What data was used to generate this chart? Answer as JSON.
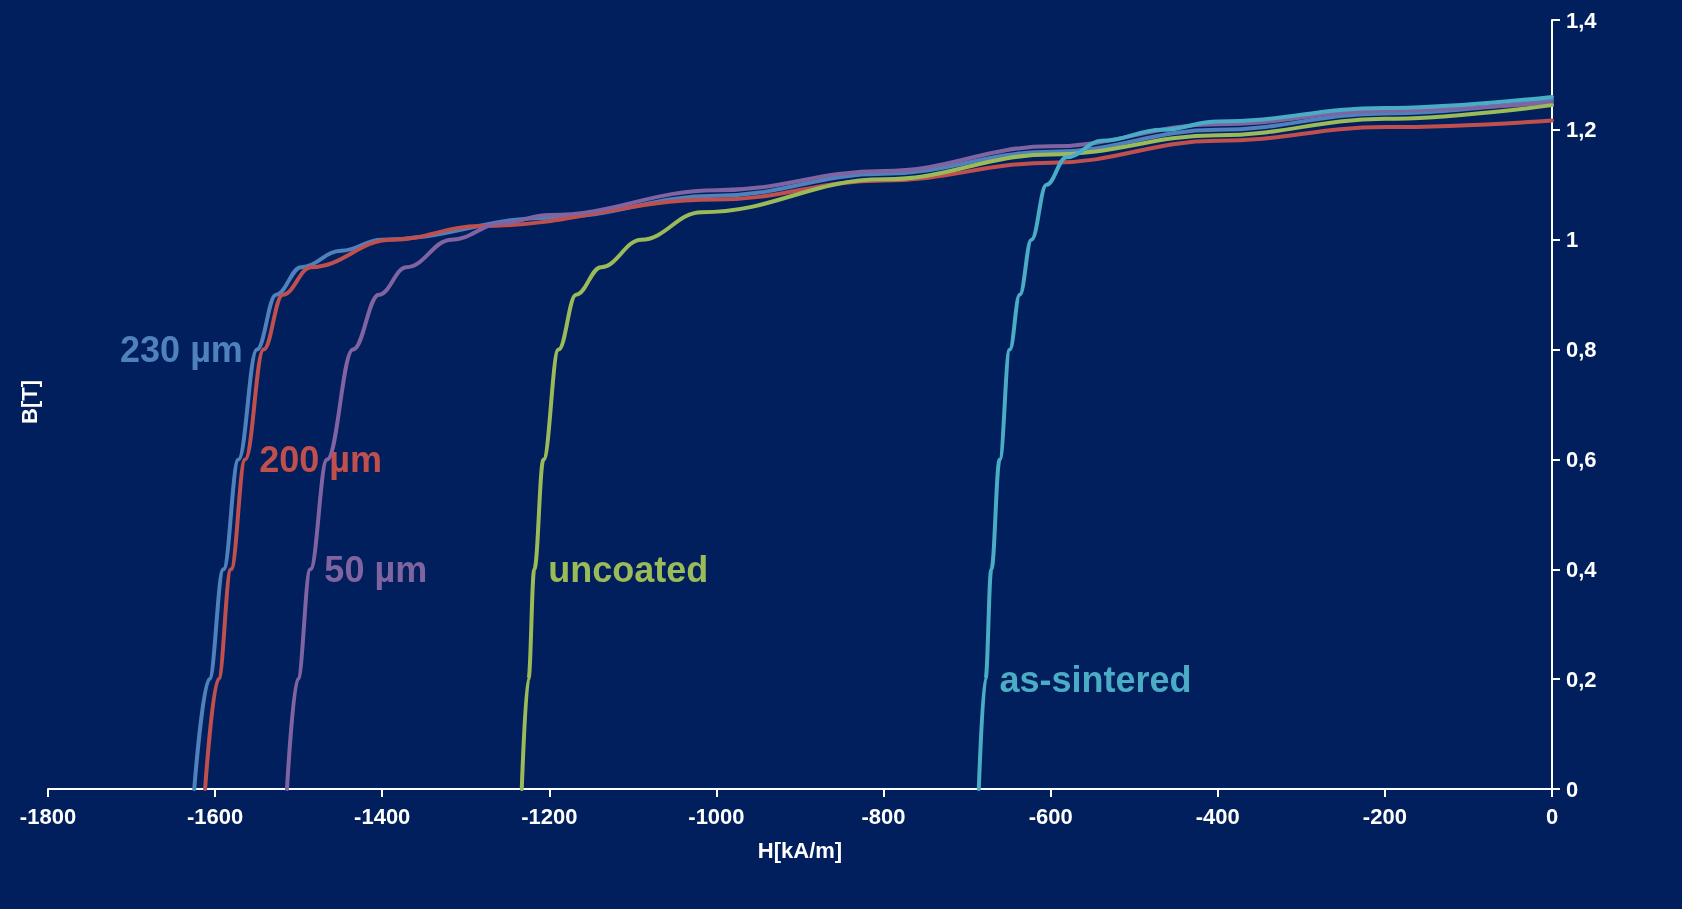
{
  "chart_data": {
    "type": "line",
    "xlabel": "H[kA/m]",
    "ylabel": "B[T]",
    "xlim": [
      -1800,
      0
    ],
    "xticks": [
      -1800,
      -1600,
      -1400,
      -1200,
      -1000,
      -800,
      -600,
      -400,
      -200,
      0
    ],
    "ylim": [
      0,
      1.4
    ],
    "yticks": [
      {
        "value": 0,
        "label": "0"
      },
      {
        "value": 0.2,
        "label": "0,2"
      },
      {
        "value": 0.4,
        "label": "0,4"
      },
      {
        "value": 0.6,
        "label": "0,6"
      },
      {
        "value": 0.8,
        "label": "0,8"
      },
      {
        "value": 1,
        "label": "1"
      },
      {
        "value": 1.2,
        "label": "1,2"
      },
      {
        "value": 1.4,
        "label": "1,4"
      }
    ],
    "grid": false,
    "legend": false,
    "marker": "none",
    "line_style": "solid",
    "series": [
      {
        "name": "230 µm",
        "color": "#4f81bd",
        "x": [
          -1625,
          -1607,
          -1590,
          -1572,
          -1550,
          -1527,
          -1497,
          -1449,
          -1401,
          -1200,
          -1000,
          -800,
          -600,
          -400,
          -200,
          0
        ],
        "values": [
          0,
          0.2,
          0.4,
          0.6,
          0.8,
          0.9,
          0.95,
          0.98,
          1.0,
          1.04,
          1.08,
          1.12,
          1.16,
          1.2,
          1.23,
          1.255
        ]
      },
      {
        "name": "200 µm",
        "color": "#c0504d",
        "x": [
          -1612,
          -1596,
          -1581,
          -1564,
          -1542,
          -1519,
          -1485,
          -1389,
          -1282,
          -1000,
          -800,
          -600,
          -400,
          -200,
          0
        ],
        "values": [
          0,
          0.2,
          0.4,
          0.6,
          0.8,
          0.9,
          0.95,
          1.0,
          1.025,
          1.073,
          1.108,
          1.14,
          1.18,
          1.205,
          1.217
        ]
      },
      {
        "name": "50 µm",
        "color": "#8064a2",
        "x": [
          -1514,
          -1501,
          -1486,
          -1466,
          -1435,
          -1404,
          -1371,
          -1317,
          -1257,
          -1200,
          -1000,
          -800,
          -600,
          -400,
          -200,
          0
        ],
        "values": [
          0,
          0.2,
          0.4,
          0.6,
          0.8,
          0.9,
          0.95,
          1.0,
          1.03,
          1.045,
          1.09,
          1.125,
          1.17,
          1.21,
          1.235,
          1.25
        ]
      },
      {
        "name": "uncoated",
        "color": "#9bbb59",
        "x": [
          -1233,
          -1225,
          -1218,
          -1207,
          -1189,
          -1168,
          -1138,
          -1090,
          -1018,
          -800,
          -600,
          -400,
          -200,
          0
        ],
        "values": [
          0,
          0.2,
          0.4,
          0.6,
          0.8,
          0.9,
          0.95,
          1.0,
          1.05,
          1.11,
          1.155,
          1.19,
          1.22,
          1.245
        ]
      },
      {
        "name": "as-sintered",
        "color": "#4bacc6",
        "x": [
          -686,
          -678,
          -671,
          -661,
          -649,
          -637,
          -623,
          -605,
          -581,
          -539,
          -467,
          -400,
          -200,
          0
        ],
        "values": [
          0,
          0.2,
          0.4,
          0.6,
          0.8,
          0.9,
          1.0,
          1.1,
          1.15,
          1.18,
          1.2,
          1.215,
          1.24,
          1.26
        ]
      }
    ]
  }
}
